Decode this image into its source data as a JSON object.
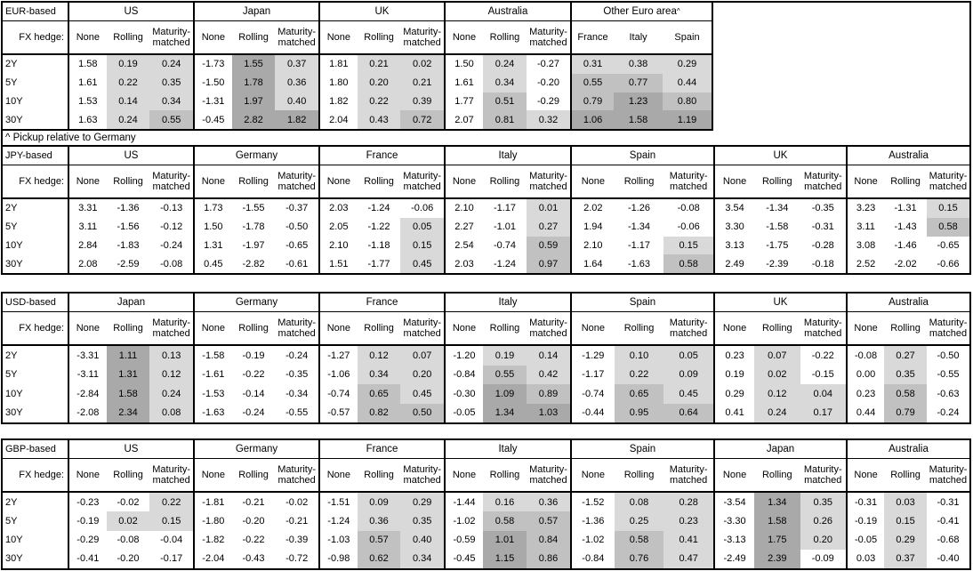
{
  "page": {
    "footnote": "^ Pickup relative to Germany"
  },
  "labels": {
    "hedge": "FX hedge:",
    "maturities": [
      "2Y",
      "5Y",
      "10Y",
      "30Y"
    ],
    "hedge_types": [
      "None",
      "Rolling",
      "Maturity-matched"
    ]
  },
  "colors": {
    "background": "#ffffff",
    "border": "#000000",
    "shade_none": "#ffffff",
    "shade_light": "#d9d9d9",
    "shade_medium": "#c1c1c1",
    "shade_dark": "#a9a9a9"
  },
  "shade_rule": {
    "description": "positive values in hedged/other-euro columns shaded by magnitude",
    "light_below": 0.5,
    "medium_below": 1.0
  },
  "tables": [
    {
      "base": "EUR-based",
      "groups": [
        {
          "country": "US",
          "cols": [
            "None",
            "Rolling",
            "Maturity-matched"
          ],
          "shade_cols": [
            1,
            2
          ],
          "rows": [
            [
              "1.58",
              "0.19",
              "0.24"
            ],
            [
              "1.61",
              "0.22",
              "0.35"
            ],
            [
              "1.53",
              "0.14",
              "0.34"
            ],
            [
              "1.63",
              "0.24",
              "0.55"
            ]
          ]
        },
        {
          "country": "Japan",
          "cols": [
            "None",
            "Rolling",
            "Maturity-matched"
          ],
          "shade_cols": [
            1,
            2
          ],
          "rows": [
            [
              "-1.73",
              "1.55",
              "0.37"
            ],
            [
              "-1.50",
              "1.78",
              "0.36"
            ],
            [
              "-1.31",
              "1.97",
              "0.40"
            ],
            [
              "-0.45",
              "2.82",
              "1.82"
            ]
          ]
        },
        {
          "country": "UK",
          "cols": [
            "None",
            "Rolling",
            "Maturity-matched"
          ],
          "shade_cols": [
            1,
            2
          ],
          "rows": [
            [
              "1.81",
              "0.21",
              "0.02"
            ],
            [
              "1.80",
              "0.20",
              "0.21"
            ],
            [
              "1.82",
              "0.22",
              "0.39"
            ],
            [
              "2.04",
              "0.43",
              "0.72"
            ]
          ]
        },
        {
          "country": "Australia",
          "cols": [
            "None",
            "Rolling",
            "Maturity-matched"
          ],
          "shade_cols": [
            1,
            2
          ],
          "rows": [
            [
              "1.50",
              "0.24",
              "-0.27"
            ],
            [
              "1.61",
              "0.34",
              "-0.20"
            ],
            [
              "1.77",
              "0.51",
              "-0.29"
            ],
            [
              "2.07",
              "0.81",
              "0.32"
            ]
          ]
        },
        {
          "country": "Other Euro area",
          "sup": "^",
          "cols": [
            "France",
            "Italy",
            "Spain"
          ],
          "shade_cols": [
            0,
            1,
            2
          ],
          "rows": [
            [
              "0.31",
              "0.38",
              "0.29"
            ],
            [
              "0.55",
              "0.77",
              "0.44"
            ],
            [
              "0.79",
              "1.23",
              "0.80"
            ],
            [
              "1.06",
              "1.58",
              "1.19"
            ]
          ]
        }
      ]
    },
    {
      "base": "JPY-based",
      "groups": [
        {
          "country": "US",
          "cols": [
            "None",
            "Rolling",
            "Maturity-matched"
          ],
          "shade_cols": [
            1,
            2
          ],
          "rows": [
            [
              "3.31",
              "-1.36",
              "-0.13"
            ],
            [
              "3.11",
              "-1.56",
              "-0.12"
            ],
            [
              "2.84",
              "-1.83",
              "-0.24"
            ],
            [
              "2.08",
              "-2.59",
              "-0.08"
            ]
          ]
        },
        {
          "country": "Germany",
          "cols": [
            "None",
            "Rolling",
            "Maturity-matched"
          ],
          "shade_cols": [
            1,
            2
          ],
          "rows": [
            [
              "1.73",
              "-1.55",
              "-0.37"
            ],
            [
              "1.50",
              "-1.78",
              "-0.50"
            ],
            [
              "1.31",
              "-1.97",
              "-0.65"
            ],
            [
              "0.45",
              "-2.82",
              "-0.61"
            ]
          ]
        },
        {
          "country": "France",
          "cols": [
            "None",
            "Rolling",
            "Maturity-matched"
          ],
          "shade_cols": [
            1,
            2
          ],
          "rows": [
            [
              "2.03",
              "-1.24",
              "-0.06"
            ],
            [
              "2.05",
              "-1.22",
              "0.05"
            ],
            [
              "2.10",
              "-1.18",
              "0.15"
            ],
            [
              "1.51",
              "-1.77",
              "0.45"
            ]
          ]
        },
        {
          "country": "Italy",
          "cols": [
            "None",
            "Rolling",
            "Maturity-matched"
          ],
          "shade_cols": [
            1,
            2
          ],
          "rows": [
            [
              "2.10",
              "-1.17",
              "0.01"
            ],
            [
              "2.27",
              "-1.01",
              "0.27"
            ],
            [
              "2.54",
              "-0.74",
              "0.59"
            ],
            [
              "2.03",
              "-1.24",
              "0.97"
            ]
          ]
        },
        {
          "country": "Spain",
          "cols": [
            "None",
            "Rolling",
            "Maturity-matched"
          ],
          "shade_cols": [
            1,
            2
          ],
          "rows": [
            [
              "2.02",
              "-1.26",
              "-0.08"
            ],
            [
              "1.94",
              "-1.34",
              "-0.06"
            ],
            [
              "2.10",
              "-1.17",
              "0.15"
            ],
            [
              "1.64",
              "-1.63",
              "0.58"
            ]
          ]
        },
        {
          "country": "UK",
          "cols": [
            "None",
            "Rolling",
            "Maturity-matched"
          ],
          "shade_cols": [
            1,
            2
          ],
          "rows": [
            [
              "3.54",
              "-1.34",
              "-0.35"
            ],
            [
              "3.30",
              "-1.58",
              "-0.31"
            ],
            [
              "3.13",
              "-1.75",
              "-0.28"
            ],
            [
              "2.49",
              "-2.39",
              "-0.18"
            ]
          ]
        },
        {
          "country": "Australia",
          "cols": [
            "None",
            "Rolling",
            "Maturity-matched"
          ],
          "shade_cols": [
            1,
            2
          ],
          "rows": [
            [
              "3.23",
              "-1.31",
              "0.15"
            ],
            [
              "3.11",
              "-1.43",
              "0.58"
            ],
            [
              "3.08",
              "-1.46",
              "-0.65"
            ],
            [
              "2.52",
              "-2.02",
              "-0.66"
            ]
          ]
        }
      ]
    },
    {
      "base": "USD-based",
      "groups": [
        {
          "country": "Japan",
          "cols": [
            "None",
            "Rolling",
            "Maturity-matched"
          ],
          "shade_cols": [
            1,
            2
          ],
          "rows": [
            [
              "-3.31",
              "1.11",
              "0.13"
            ],
            [
              "-3.11",
              "1.31",
              "0.12"
            ],
            [
              "-2.84",
              "1.58",
              "0.24"
            ],
            [
              "-2.08",
              "2.34",
              "0.08"
            ]
          ]
        },
        {
          "country": "Germany",
          "cols": [
            "None",
            "Rolling",
            "Maturity-matched"
          ],
          "shade_cols": [
            1,
            2
          ],
          "rows": [
            [
              "-1.58",
              "-0.19",
              "-0.24"
            ],
            [
              "-1.61",
              "-0.22",
              "-0.35"
            ],
            [
              "-1.53",
              "-0.14",
              "-0.34"
            ],
            [
              "-1.63",
              "-0.24",
              "-0.55"
            ]
          ]
        },
        {
          "country": "France",
          "cols": [
            "None",
            "Rolling",
            "Maturity-matched"
          ],
          "shade_cols": [
            1,
            2
          ],
          "rows": [
            [
              "-1.27",
              "0.12",
              "0.07"
            ],
            [
              "-1.06",
              "0.34",
              "0.20"
            ],
            [
              "-0.74",
              "0.65",
              "0.45"
            ],
            [
              "-0.57",
              "0.82",
              "0.50"
            ]
          ]
        },
        {
          "country": "Italy",
          "cols": [
            "None",
            "Rolling",
            "Maturity-matched"
          ],
          "shade_cols": [
            1,
            2
          ],
          "rows": [
            [
              "-1.20",
              "0.19",
              "0.14"
            ],
            [
              "-0.84",
              "0.55",
              "0.42"
            ],
            [
              "-0.30",
              "1.09",
              "0.89"
            ],
            [
              "-0.05",
              "1.34",
              "1.03"
            ]
          ]
        },
        {
          "country": "Spain",
          "cols": [
            "None",
            "Rolling",
            "Maturity-matched"
          ],
          "shade_cols": [
            1,
            2
          ],
          "rows": [
            [
              "-1.29",
              "0.10",
              "0.05"
            ],
            [
              "-1.17",
              "0.22",
              "0.09"
            ],
            [
              "-0.74",
              "0.65",
              "0.45"
            ],
            [
              "-0.44",
              "0.95",
              "0.64"
            ]
          ]
        },
        {
          "country": "UK",
          "cols": [
            "None",
            "Rolling",
            "Maturity-matched"
          ],
          "shade_cols": [
            1,
            2
          ],
          "rows": [
            [
              "0.23",
              "0.07",
              "-0.22"
            ],
            [
              "0.19",
              "0.02",
              "-0.15"
            ],
            [
              "0.29",
              "0.12",
              "0.04"
            ],
            [
              "0.41",
              "0.24",
              "0.17"
            ]
          ]
        },
        {
          "country": "Australia",
          "cols": [
            "None",
            "Rolling",
            "Maturity-matched"
          ],
          "shade_cols": [
            1,
            2
          ],
          "rows": [
            [
              "-0.08",
              "0.27",
              "-0.50"
            ],
            [
              "0.00",
              "0.35",
              "-0.55"
            ],
            [
              "0.23",
              "0.58",
              "-0.63"
            ],
            [
              "0.44",
              "0.79",
              "-0.24"
            ]
          ]
        }
      ]
    },
    {
      "base": "GBP-based",
      "groups": [
        {
          "country": "US",
          "cols": [
            "None",
            "Rolling",
            "Maturity-matched"
          ],
          "shade_cols": [
            1,
            2
          ],
          "rows": [
            [
              "-0.23",
              "-0.02",
              "0.22"
            ],
            [
              "-0.19",
              "0.02",
              "0.15"
            ],
            [
              "-0.29",
              "-0.08",
              "-0.04"
            ],
            [
              "-0.41",
              "-0.20",
              "-0.17"
            ]
          ]
        },
        {
          "country": "Germany",
          "cols": [
            "None",
            "Rolling",
            "Maturity-matched"
          ],
          "shade_cols": [
            1,
            2
          ],
          "rows": [
            [
              "-1.81",
              "-0.21",
              "-0.02"
            ],
            [
              "-1.80",
              "-0.20",
              "-0.21"
            ],
            [
              "-1.82",
              "-0.22",
              "-0.39"
            ],
            [
              "-2.04",
              "-0.43",
              "-0.72"
            ]
          ]
        },
        {
          "country": "France",
          "cols": [
            "None",
            "Rolling",
            "Maturity-matched"
          ],
          "shade_cols": [
            1,
            2
          ],
          "rows": [
            [
              "-1.51",
              "0.09",
              "0.29"
            ],
            [
              "-1.24",
              "0.36",
              "0.35"
            ],
            [
              "-1.03",
              "0.57",
              "0.40"
            ],
            [
              "-0.98",
              "0.62",
              "0.34"
            ]
          ]
        },
        {
          "country": "Italy",
          "cols": [
            "None",
            "Rolling",
            "Maturity-matched"
          ],
          "shade_cols": [
            1,
            2
          ],
          "rows": [
            [
              "-1.44",
              "0.16",
              "0.36"
            ],
            [
              "-1.02",
              "0.58",
              "0.57"
            ],
            [
              "-0.59",
              "1.01",
              "0.84"
            ],
            [
              "-0.45",
              "1.15",
              "0.86"
            ]
          ]
        },
        {
          "country": "Spain",
          "cols": [
            "None",
            "Rolling",
            "Maturity-matched"
          ],
          "shade_cols": [
            1,
            2
          ],
          "rows": [
            [
              "-1.52",
              "0.08",
              "0.28"
            ],
            [
              "-1.36",
              "0.25",
              "0.23"
            ],
            [
              "-1.02",
              "0.58",
              "0.41"
            ],
            [
              "-0.84",
              "0.76",
              "0.47"
            ]
          ]
        },
        {
          "country": "Japan",
          "cols": [
            "None",
            "Rolling",
            "Maturity-matched"
          ],
          "shade_cols": [
            1,
            2
          ],
          "rows": [
            [
              "-3.54",
              "1.34",
              "0.35"
            ],
            [
              "-3.30",
              "1.58",
              "0.26"
            ],
            [
              "-3.13",
              "1.75",
              "0.20"
            ],
            [
              "-2.49",
              "2.39",
              "-0.09"
            ]
          ]
        },
        {
          "country": "Australia",
          "cols": [
            "None",
            "Rolling",
            "Maturity-matched"
          ],
          "shade_cols": [
            1,
            2
          ],
          "rows": [
            [
              "-0.31",
              "0.03",
              "-0.31"
            ],
            [
              "-0.19",
              "0.15",
              "-0.41"
            ],
            [
              "-0.05",
              "0.29",
              "-0.68"
            ],
            [
              "0.03",
              "0.37",
              "-0.40"
            ]
          ]
        }
      ]
    }
  ]
}
